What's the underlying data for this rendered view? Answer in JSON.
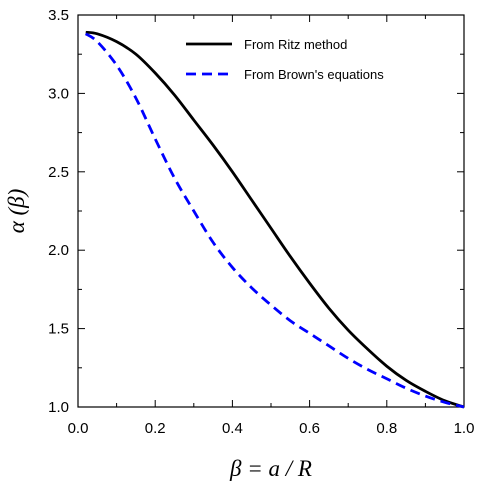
{
  "chart_data": {
    "type": "line",
    "xlabel": "β = a / R",
    "ylabel": "α (β)",
    "xlim": [
      0.0,
      1.0
    ],
    "ylim": [
      1.0,
      3.5
    ],
    "x_ticks": [
      "0.0",
      "0.2",
      "0.4",
      "0.6",
      "0.8",
      "1.0"
    ],
    "y_ticks": [
      "1.0",
      "1.5",
      "2.0",
      "2.5",
      "3.0",
      "3.5"
    ],
    "legend_position": "top-right",
    "grid": false,
    "series": [
      {
        "name": "From Ritz method",
        "color": "#000000",
        "line_style": "solid",
        "x": [
          0.02,
          0.05,
          0.1,
          0.15,
          0.2,
          0.25,
          0.3,
          0.35,
          0.4,
          0.45,
          0.5,
          0.55,
          0.6,
          0.65,
          0.7,
          0.75,
          0.8,
          0.85,
          0.9,
          0.95,
          1.0
        ],
        "y": [
          3.39,
          3.38,
          3.33,
          3.25,
          3.13,
          2.99,
          2.83,
          2.67,
          2.5,
          2.32,
          2.14,
          1.96,
          1.79,
          1.63,
          1.49,
          1.37,
          1.26,
          1.17,
          1.1,
          1.04,
          1.0
        ]
      },
      {
        "name": "From Brown's equations",
        "color": "#0000ff",
        "line_style": "dashed",
        "x": [
          0.02,
          0.05,
          0.1,
          0.15,
          0.2,
          0.25,
          0.3,
          0.35,
          0.4,
          0.45,
          0.5,
          0.55,
          0.6,
          0.65,
          0.7,
          0.75,
          0.8,
          0.85,
          0.9,
          0.95,
          1.0
        ],
        "y": [
          3.38,
          3.33,
          3.18,
          2.97,
          2.71,
          2.46,
          2.25,
          2.05,
          1.89,
          1.76,
          1.65,
          1.55,
          1.47,
          1.39,
          1.31,
          1.24,
          1.18,
          1.12,
          1.07,
          1.03,
          1.0
        ]
      }
    ]
  }
}
